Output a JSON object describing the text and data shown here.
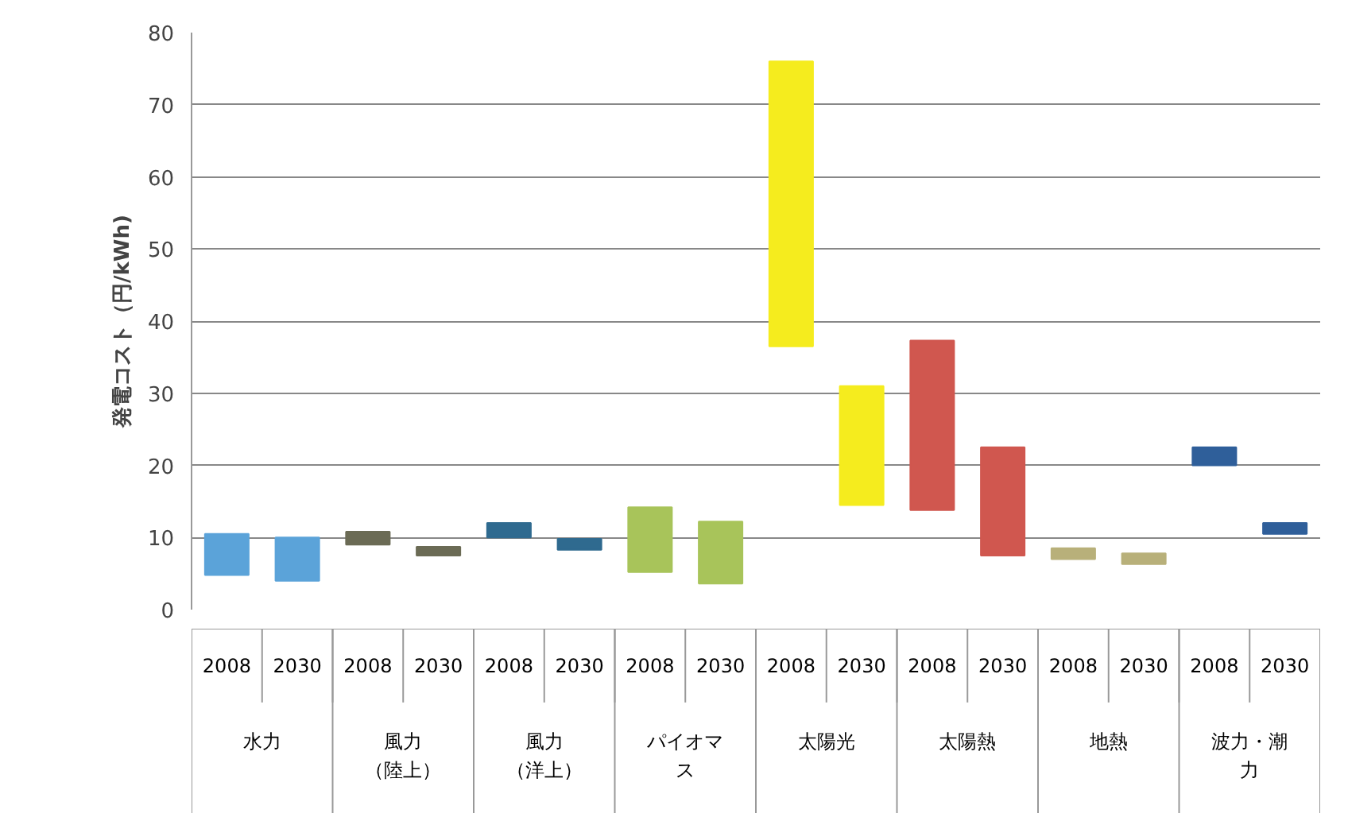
{
  "chart_data": {
    "type": "bar",
    "ylabel": "発電コスト（円/kWh)",
    "categories": [
      "2008",
      "2030",
      "2008",
      "2030",
      "2008",
      "2030",
      "2008",
      "2030",
      "2008",
      "2030",
      "2008",
      "2030",
      "2008",
      "2030",
      "2008",
      "2030"
    ],
    "base": [
      4.8,
      4.0,
      9.0,
      7.5,
      10.0,
      8.3,
      5.2,
      3.6,
      36.5,
      14.5,
      13.8,
      7.5,
      7.0,
      6.3,
      20.0,
      10.5
    ],
    "values": [
      5.7,
      6.0,
      1.8,
      1.2,
      2.0,
      1.5,
      9.0,
      8.6,
      39.5,
      16.5,
      23.5,
      15.0,
      1.5,
      1.5,
      2.5,
      1.5
    ],
    "colors": [
      "#5ba3d9",
      "#5ba3d9",
      "#6b6b55",
      "#6b6b55",
      "#2f6a8f",
      "#2f6a8f",
      "#a8c45a",
      "#a8c45a",
      "#f5ec1e",
      "#f5ec1e",
      "#d0574f",
      "#d0574f",
      "#b8b07a",
      "#b8b07a",
      "#2f5f9a",
      "#2f5f9a"
    ],
    "ylim": [
      0,
      80
    ],
    "yticks": [
      0,
      10,
      20,
      30,
      40,
      50,
      60,
      70,
      80
    ],
    "grid": "y",
    "annotations": [
      "水力",
      "風力（陸上）",
      "風力（洋上）",
      "パイオマス",
      "太陽光",
      "太陽熱",
      "地熱",
      "波力・潮力"
    ]
  }
}
